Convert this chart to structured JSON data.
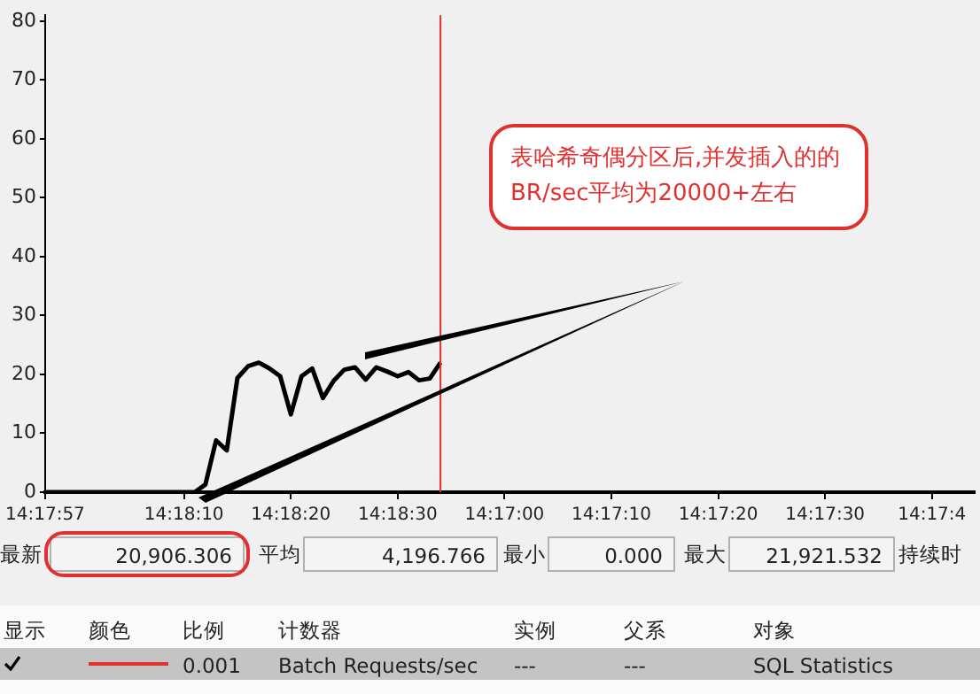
{
  "chart_data": {
    "type": "line",
    "categories": [
      "14:17:57",
      null,
      null,
      null,
      null,
      null,
      null,
      null,
      null,
      null,
      null,
      null,
      null,
      "14:18:10",
      null,
      null,
      null,
      null,
      null,
      null,
      null,
      null,
      null,
      "14:18:20",
      null,
      null,
      null,
      null,
      null,
      null,
      null,
      null,
      null,
      "14:18:30",
      null,
      null,
      null,
      null,
      null,
      null,
      null,
      null,
      null,
      "14:17:00",
      null,
      null,
      null,
      null,
      null,
      null,
      null,
      null,
      null,
      "14:17:10",
      null,
      null,
      null,
      null,
      null,
      null,
      null,
      null,
      null,
      "14:17:20",
      null,
      null,
      null,
      null,
      null,
      null,
      null,
      null,
      null,
      "14:17:30",
      null,
      null,
      null,
      null,
      null,
      null,
      null,
      null,
      null,
      "14:17:4",
      null,
      null,
      null,
      null
    ],
    "series": [
      {
        "color": "#000000",
        "values": [
          0,
          0,
          0,
          0,
          0,
          0,
          0,
          0,
          0,
          0,
          0,
          0,
          0,
          0,
          0,
          1.3,
          8.8,
          7.1,
          19.4,
          21.4,
          22,
          21,
          19.7,
          13.2,
          19.7,
          21,
          16,
          18.9,
          20.8,
          21.2,
          19.1,
          21.2,
          20.5,
          19.7,
          20.4,
          19,
          19.3,
          22,
          null,
          null,
          null,
          null,
          null,
          null,
          null,
          null,
          null,
          null,
          null,
          null,
          null,
          null,
          null,
          null,
          null,
          null,
          null,
          null,
          null,
          null,
          null,
          null,
          null,
          null,
          null,
          null,
          null,
          null,
          null,
          null,
          null,
          null,
          null,
          null,
          null,
          null,
          null,
          null,
          null,
          null,
          null,
          null,
          null,
          null,
          null,
          null,
          null,
          null
        ]
      }
    ],
    "ylim": [
      0,
      81
    ],
    "yticks": [
      0,
      10,
      20,
      30,
      40,
      50,
      60,
      70,
      80
    ],
    "marker": "none",
    "line_style": "solid",
    "annotations": [
      "表哈希奇偶分区后,并发插入的的BR/sec平均为20000+左右",
      "最新",
      "20,906.306",
      "平均",
      "4,196.766",
      "最小",
      "0.000",
      "最大",
      "21,921.532",
      "持续时",
      "显示",
      "颜色",
      "比例",
      "计数器",
      "实例",
      "父系",
      "对象",
      "0.001",
      "Batch Requests/sec",
      "---",
      "---",
      "SQL Statistics"
    ]
  }
}
